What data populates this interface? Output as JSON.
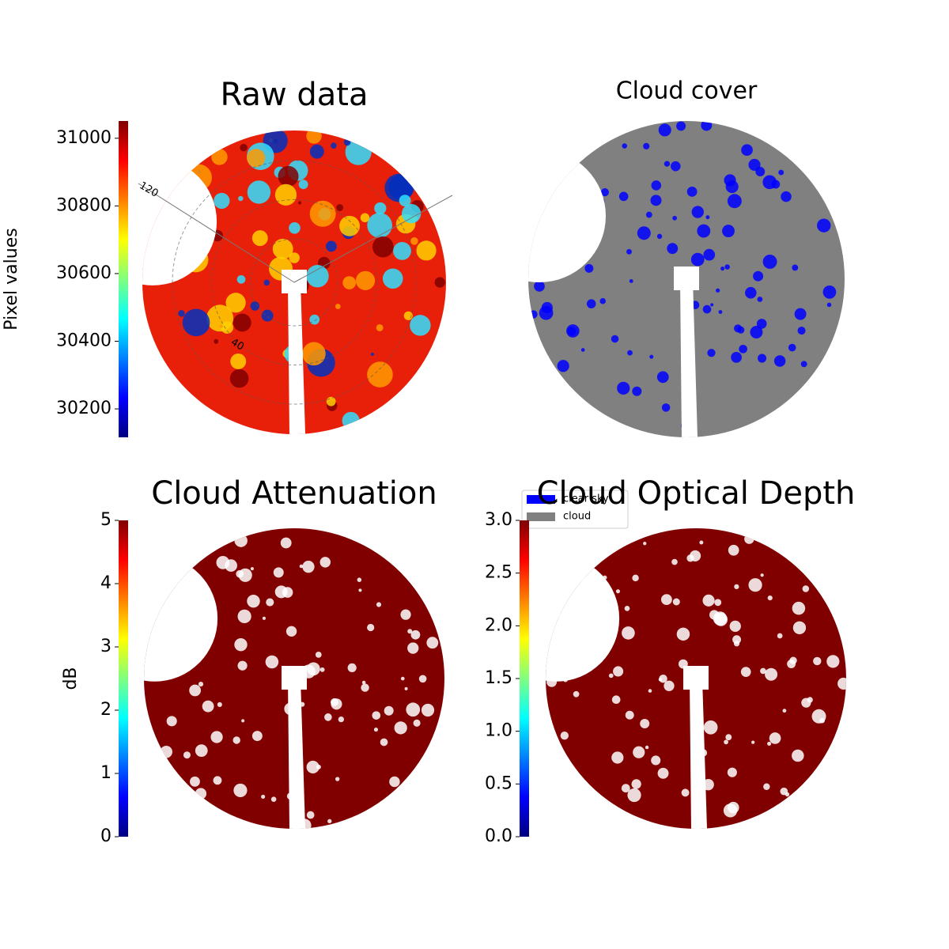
{
  "panels": [
    {
      "title": "Raw data",
      "colormap": "jet",
      "colorbar": {
        "label": "Pixel values",
        "lim": [
          30116,
          31051
        ],
        "ticks": [
          30200,
          30400,
          30600,
          30800,
          31000
        ]
      },
      "polar_labels": [
        "120",
        "40"
      ]
    },
    {
      "title": "Cloud cover",
      "legend": [
        {
          "name": "clear sky",
          "color": "#0000ff"
        },
        {
          "name": "cloud",
          "color": "#808080"
        }
      ]
    },
    {
      "title": "Cloud Attenuation",
      "colormap": "jet",
      "colorbar": {
        "label": "dB",
        "lim": [
          0,
          5
        ],
        "ticks": [
          0,
          1,
          2,
          3,
          4,
          5
        ]
      }
    },
    {
      "title": "Cloud Optical Depth",
      "colormap": "jet",
      "colorbar": {
        "lim": [
          0,
          3
        ],
        "ticks": [
          {
            "value": 0,
            "label": "0.0"
          },
          0.5,
          {
            "value": 1,
            "label": "1.0"
          },
          1.5,
          {
            "value": 2,
            "label": "2.0"
          },
          2.5,
          {
            "value": 3,
            "label": "3.0"
          }
        ]
      }
    }
  ]
}
